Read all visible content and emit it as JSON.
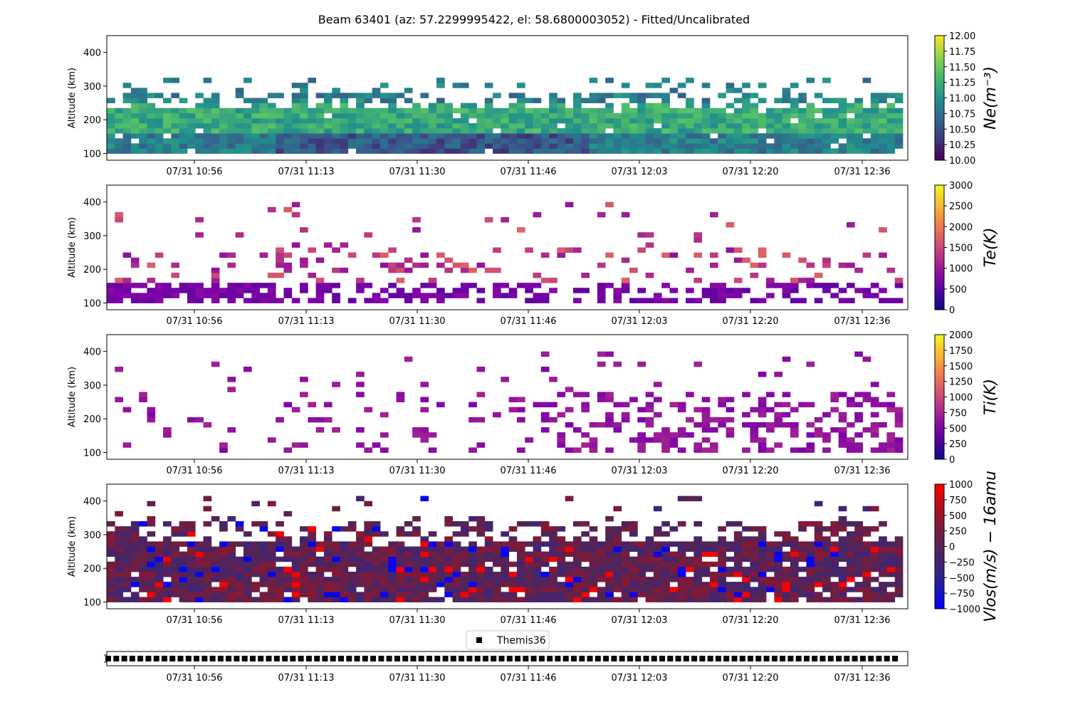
{
  "title": "Beam 63401 (az: 57.2299995422, el: 58.6800003052) - Fitted/Uncalibrated",
  "x_tick_labels": [
    "07/31 10:56",
    "07/31 11:13",
    "07/31 11:30",
    "07/31 11:46",
    "07/31 12:03",
    "07/31 12:20",
    "07/31 12:36"
  ],
  "chart_data": [
    {
      "type": "heatmap",
      "name": "Ne",
      "ylabel": "Altitude (km)",
      "ylim": [
        80,
        450
      ],
      "yticks": [
        100,
        200,
        300,
        400
      ],
      "x_time_range": [
        "10:43",
        "12:47"
      ],
      "y_range_km": [
        100,
        325
      ],
      "colorbar": {
        "label": "Ne(m^-3)",
        "label_display": "Ne(m⁻³)",
        "colormap": "viridis",
        "vmin": 10.0,
        "vmax": 12.0,
        "ticks": [
          "10.00",
          "10.25",
          "10.50",
          "10.75",
          "11.00",
          "11.25",
          "11.50",
          "11.75",
          "12.00"
        ]
      }
    },
    {
      "type": "heatmap",
      "name": "Te",
      "ylabel": "Altitude (km)",
      "ylim": [
        80,
        450
      ],
      "yticks": [
        100,
        200,
        300,
        400
      ],
      "x_time_range": [
        "10:43",
        "12:47"
      ],
      "y_range_km": [
        100,
        405
      ],
      "colorbar": {
        "label": "Te(K)",
        "label_display": "Te(K)",
        "colormap": "plasma",
        "vmin": 0,
        "vmax": 3000,
        "ticks": [
          "0",
          "500",
          "1000",
          "1500",
          "2000",
          "2500",
          "3000"
        ]
      }
    },
    {
      "type": "heatmap",
      "name": "Ti",
      "ylabel": "Altitude (km)",
      "ylim": [
        80,
        450
      ],
      "yticks": [
        100,
        200,
        300,
        400
      ],
      "x_time_range": [
        "10:43",
        "12:47"
      ],
      "y_range_km": [
        100,
        405
      ],
      "colorbar": {
        "label": "Ti(K)",
        "label_display": "Ti(K)",
        "colormap": "plasma",
        "vmin": 0,
        "vmax": 2000,
        "ticks": [
          "0",
          "250",
          "500",
          "750",
          "1000",
          "1250",
          "1500",
          "1750",
          "2000"
        ]
      }
    },
    {
      "type": "heatmap",
      "name": "Vlos",
      "ylabel": "Altitude (km)",
      "ylim": [
        80,
        450
      ],
      "yticks": [
        100,
        200,
        300,
        400
      ],
      "x_time_range": [
        "10:43",
        "12:47"
      ],
      "y_range_km": [
        100,
        410
      ],
      "colorbar": {
        "label": "Vlos(m/s) - 16amu",
        "label_display": "Vlos(m/s) − 16amu",
        "colormap": "bwr",
        "vmin": -1000,
        "vmax": 1000,
        "ticks": [
          "1000",
          "750",
          "500",
          "250",
          "0",
          "−250",
          "−500",
          "−750",
          "−1000"
        ]
      }
    },
    {
      "type": "scatter",
      "name": "Themis36",
      "legend": [
        "Themis36"
      ],
      "marker": "square",
      "color": "#000000",
      "point_count": 99,
      "x_time_range": [
        "10:43",
        "12:47"
      ]
    }
  ]
}
